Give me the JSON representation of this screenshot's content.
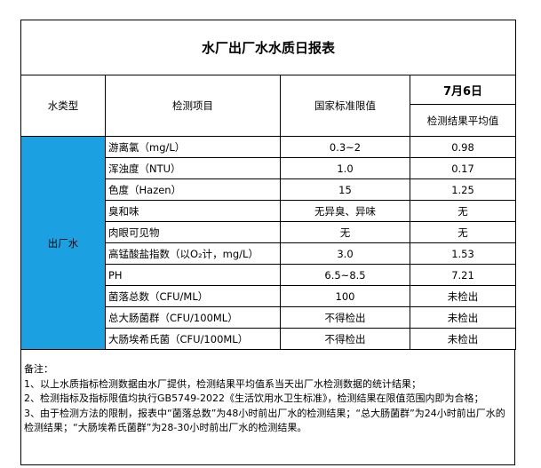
{
  "title": "水厂出厂水水质日报表",
  "headers": {
    "type": "水类型",
    "item": "检测项目",
    "limit": "国家标准限值",
    "date": "7月6日",
    "result": "检测结果平均值"
  },
  "water_type": "出厂水",
  "rows": [
    {
      "item": "游离氯（mg/L）",
      "limit": "0.3~2",
      "result": "0.98"
    },
    {
      "item": "浑浊度（NTU）",
      "limit": "1.0",
      "result": "0.17"
    },
    {
      "item": "色度（Hazen）",
      "limit": "15",
      "result": "1.25"
    },
    {
      "item": "臭和味",
      "limit": "无异臭、异味",
      "result": "无"
    },
    {
      "item": "肉眼可见物",
      "limit": "无",
      "result": "无"
    },
    {
      "item": "高锰酸盐指数（以O₂计，mg/L）",
      "limit": "3.0",
      "result": "1.53"
    },
    {
      "item": "PH",
      "limit": "6.5~8.5",
      "result": "7.21"
    },
    {
      "item": "菌落总数（CFU/ML）",
      "limit": "100",
      "result": "未检出"
    },
    {
      "item": "总大肠菌群（CFU/100ML）",
      "limit": "不得检出",
      "result": "未检出"
    },
    {
      "item": "大肠埃希氏菌（CFU/100ML）",
      "limit": "不得检出",
      "result": "未检出"
    }
  ],
  "notes": {
    "heading": "备注：",
    "lines": [
      "1、以上水质指标检测数据由水厂提供，检测结果平均值系当天出厂水检测数据的统计结果；",
      "2、检测指标及指标限值均执行GB5749-2022《生活饮用水卫生标准》，检测结果在限值范围内即为合格；",
      "3、由于检测方法的限制，报表中“菌落总数”为48小时前出厂水的检测结果；“总大肠菌群”为24小时前出厂水的检测结果；“大肠埃希氏菌群”为28-30小时前出厂水的检测结果。"
    ]
  },
  "colors": {
    "water_type_cell": "#1ba1e2"
  }
}
